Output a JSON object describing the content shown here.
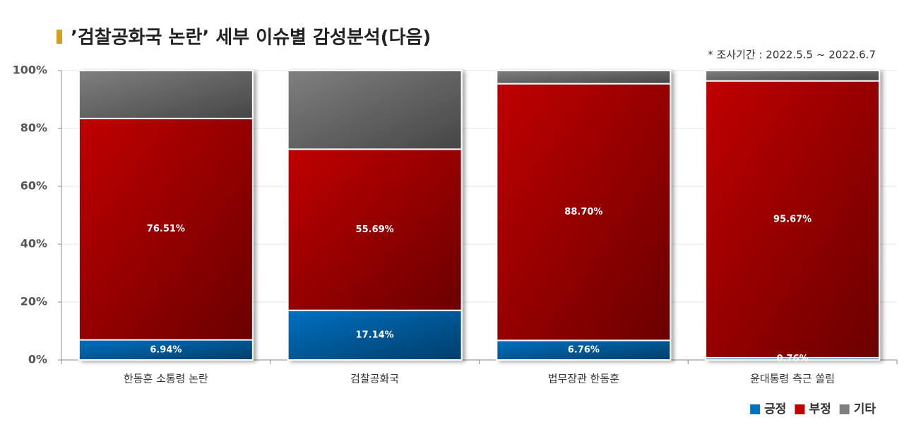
{
  "chart_data": {
    "type": "stacked-bar",
    "title": "’검찰공화국 논란’ 세부 이슈별 감성분석(다음)",
    "subtitle": "* 조사기간 : 2022.5.5 ~ 2022.6.7",
    "categories": [
      "한동훈 소통령 논란",
      "검찰공화국",
      "법무장관 한동훈",
      "윤대통령 측근 쏠림"
    ],
    "series": [
      {
        "name": "긍정",
        "color": "#0070c0",
        "values": [
          6.94,
          17.14,
          6.76,
          0.76
        ],
        "value_labels": [
          "6.94%",
          "17.14%",
          "6.76%",
          "0.76%"
        ]
      },
      {
        "name": "부정",
        "color": "#c00000",
        "values": [
          76.51,
          55.69,
          88.7,
          95.67
        ],
        "value_labels": [
          "76.51%",
          "55.69%",
          "88.70%",
          "95.67%"
        ]
      },
      {
        "name": "기타",
        "color": "#7f7f7f",
        "values": [
          16.55,
          27.17,
          4.54,
          3.57
        ]
      }
    ],
    "ylim": [
      0,
      100
    ],
    "yticks": [
      {
        "value": 0,
        "label": "0%"
      },
      {
        "value": 20,
        "label": "20%"
      },
      {
        "value": 40,
        "label": "40%"
      },
      {
        "value": 60,
        "label": "60%"
      },
      {
        "value": 80,
        "label": "80%"
      },
      {
        "value": 100,
        "label": "100%"
      }
    ],
    "grid": true,
    "legend": "bottom-right"
  }
}
